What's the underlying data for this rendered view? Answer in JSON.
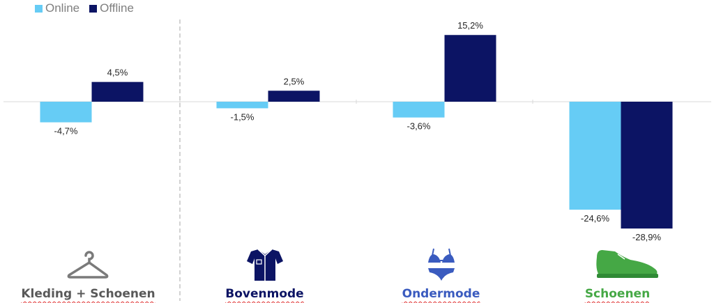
{
  "legend": [
    {
      "name": "Online",
      "color": "#66ccf5"
    },
    {
      "name": "Offline",
      "color": "#0c1464"
    }
  ],
  "categories": [
    {
      "label": "Kleding + Schoenen",
      "icon": "hanger-icon",
      "color": "#595959"
    },
    {
      "label": "Bovenmode",
      "icon": "shirt-icon",
      "color": "#0c1464"
    },
    {
      "label": "Ondermode",
      "icon": "bikini-icon",
      "color": "#3a5bbf"
    },
    {
      "label": "Schoenen",
      "icon": "shoe-icon",
      "color": "#45a845"
    }
  ],
  "chart_data": {
    "type": "bar",
    "categories": [
      "Kleding + Schoenen",
      "Bovenmode",
      "Ondermode",
      "Schoenen"
    ],
    "series": [
      {
        "name": "Online",
        "values": [
          -4.7,
          -1.5,
          -3.6,
          -24.6
        ],
        "labels": [
          "-4,7%",
          "-1,5%",
          "-3,6%",
          "-24,6%"
        ],
        "color": "#66ccf5"
      },
      {
        "name": "Offline",
        "values": [
          4.5,
          2.5,
          15.2,
          -28.9
        ],
        "labels": [
          "4,5%",
          "2,5%",
          "15,2%",
          "-28,9%"
        ],
        "color": "#0c1464"
      }
    ],
    "legend_position": "top-left",
    "grid": false
  }
}
